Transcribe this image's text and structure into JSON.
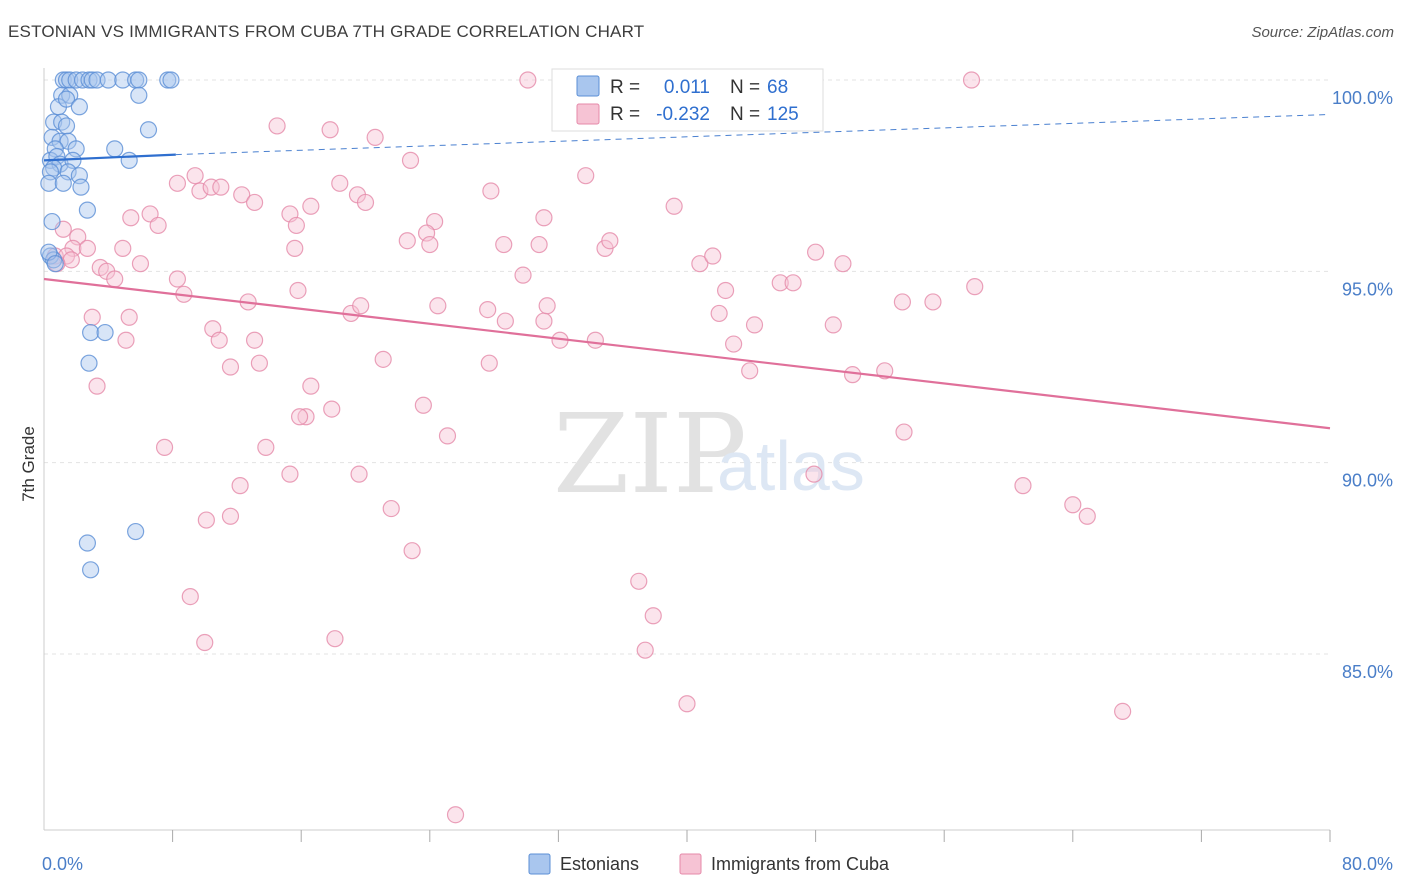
{
  "title": "ESTONIAN VS IMMIGRANTS FROM CUBA 7TH GRADE CORRELATION CHART",
  "source": "Source: ZipAtlas.com",
  "watermark": {
    "zip": "ZIP",
    "atlas": "atlas"
  },
  "chart_data": {
    "type": "scatter",
    "ylabel": "7th Grade",
    "xlim": [
      0,
      80
    ],
    "ylim": [
      80.5,
      100.8
    ],
    "x_tick_labels": [
      {
        "value": 0,
        "label": "0.0%"
      },
      {
        "value": 80,
        "label": "80.0%"
      }
    ],
    "y_tick_labels": [
      {
        "value": 100,
        "label": "100.0%"
      },
      {
        "value": 95,
        "label": "95.0%"
      },
      {
        "value": 90,
        "label": "90.0%"
      },
      {
        "value": 85,
        "label": "85.0%"
      }
    ],
    "x_minor_ticks": [
      8,
      16,
      24,
      32,
      40,
      48,
      56,
      64,
      72,
      80
    ],
    "grid": true,
    "legend": {
      "position": "top-center",
      "rows": [
        {
          "r_label": "R =",
          "r": "0.011",
          "n_label": "N =",
          "n": "68"
        },
        {
          "r_label": "R =",
          "r": "-0.232",
          "n_label": "N =",
          "n": "125"
        }
      ]
    },
    "series": [
      {
        "name": "Estonians",
        "color": "#5b8fd6",
        "fill": "#a9c6ee",
        "trend": {
          "x0": 0,
          "y0": 97.9,
          "x1": 8.2,
          "y1": 98.05,
          "dash_x1": 80,
          "dash_y1": 99.1
        },
        "points": [
          [
            1.2,
            100
          ],
          [
            1.4,
            100
          ],
          [
            1.6,
            100
          ],
          [
            2.0,
            100
          ],
          [
            2.4,
            100
          ],
          [
            2.8,
            100
          ],
          [
            3.0,
            100
          ],
          [
            3.3,
            100
          ],
          [
            4.0,
            100
          ],
          [
            4.9,
            100
          ],
          [
            5.7,
            100
          ],
          [
            5.9,
            100
          ],
          [
            7.7,
            100
          ],
          [
            7.9,
            100
          ],
          [
            1.1,
            99.6
          ],
          [
            1.6,
            99.6
          ],
          [
            5.9,
            99.6
          ],
          [
            0.9,
            99.3
          ],
          [
            1.4,
            99.5
          ],
          [
            2.2,
            99.3
          ],
          [
            0.6,
            98.9
          ],
          [
            1.1,
            98.9
          ],
          [
            1.4,
            98.8
          ],
          [
            6.5,
            98.7
          ],
          [
            0.5,
            98.5
          ],
          [
            1.0,
            98.4
          ],
          [
            1.5,
            98.4
          ],
          [
            0.7,
            98.2
          ],
          [
            2.0,
            98.2
          ],
          [
            4.4,
            98.2
          ],
          [
            0.4,
            97.9
          ],
          [
            0.8,
            98.0
          ],
          [
            1.0,
            97.8
          ],
          [
            0.6,
            97.7
          ],
          [
            1.8,
            97.9
          ],
          [
            5.3,
            97.9
          ],
          [
            0.4,
            97.6
          ],
          [
            1.5,
            97.6
          ],
          [
            2.2,
            97.5
          ],
          [
            0.3,
            97.3
          ],
          [
            1.2,
            97.3
          ],
          [
            2.3,
            97.2
          ],
          [
            2.7,
            96.6
          ],
          [
            0.5,
            96.3
          ],
          [
            0.4,
            95.4
          ],
          [
            0.6,
            95.3
          ],
          [
            0.3,
            95.5
          ],
          [
            0.7,
            95.2
          ],
          [
            2.9,
            93.4
          ],
          [
            3.8,
            93.4
          ],
          [
            2.8,
            92.6
          ],
          [
            5.7,
            88.2
          ],
          [
            2.7,
            87.9
          ],
          [
            2.9,
            87.2
          ]
        ]
      },
      {
        "name": "Immigrants from Cuba",
        "color": "#e589a9",
        "fill": "#f6c3d4",
        "trend": {
          "x0": 0,
          "y0": 94.8,
          "x1": 80,
          "y1": 90.9
        },
        "points": [
          [
            30.1,
            100
          ],
          [
            57.7,
            100
          ],
          [
            14.5,
            98.8
          ],
          [
            17.8,
            98.7
          ],
          [
            20.6,
            98.5
          ],
          [
            22.8,
            97.9
          ],
          [
            33.7,
            97.5
          ],
          [
            8.3,
            97.3
          ],
          [
            9.7,
            97.1
          ],
          [
            9.4,
            97.5
          ],
          [
            10.4,
            97.2
          ],
          [
            11.0,
            97.2
          ],
          [
            12.3,
            97.0
          ],
          [
            13.1,
            96.8
          ],
          [
            16.6,
            96.7
          ],
          [
            18.4,
            97.3
          ],
          [
            19.5,
            97.0
          ],
          [
            20.0,
            96.8
          ],
          [
            27.8,
            97.1
          ],
          [
            39.2,
            96.7
          ],
          [
            6.6,
            96.5
          ],
          [
            5.4,
            96.4
          ],
          [
            7.1,
            96.2
          ],
          [
            15.3,
            96.5
          ],
          [
            15.7,
            96.2
          ],
          [
            24.3,
            96.3
          ],
          [
            31.1,
            96.4
          ],
          [
            1.2,
            96.1
          ],
          [
            2.1,
            95.9
          ],
          [
            1.8,
            95.6
          ],
          [
            2.7,
            95.6
          ],
          [
            4.9,
            95.6
          ],
          [
            0.7,
            95.4
          ],
          [
            1.4,
            95.4
          ],
          [
            1.7,
            95.3
          ],
          [
            6.0,
            95.2
          ],
          [
            15.6,
            95.6
          ],
          [
            22.6,
            95.8
          ],
          [
            23.8,
            96.0
          ],
          [
            24.0,
            95.7
          ],
          [
            28.6,
            95.7
          ],
          [
            30.8,
            95.7
          ],
          [
            34.9,
            95.6
          ],
          [
            35.2,
            95.8
          ],
          [
            40.8,
            95.2
          ],
          [
            41.6,
            95.4
          ],
          [
            48.0,
            95.5
          ],
          [
            49.7,
            95.2
          ],
          [
            29.8,
            94.9
          ],
          [
            3.5,
            95.1
          ],
          [
            3.9,
            95.0
          ],
          [
            4.4,
            94.8
          ],
          [
            8.3,
            94.8
          ],
          [
            0.8,
            95.2
          ],
          [
            3.0,
            93.8
          ],
          [
            5.3,
            93.8
          ],
          [
            5.1,
            93.2
          ],
          [
            8.7,
            94.4
          ],
          [
            12.7,
            94.2
          ],
          [
            15.8,
            94.5
          ],
          [
            19.1,
            93.9
          ],
          [
            19.7,
            94.1
          ],
          [
            24.5,
            94.1
          ],
          [
            27.6,
            94.0
          ],
          [
            28.7,
            93.7
          ],
          [
            31.1,
            93.7
          ],
          [
            31.3,
            94.1
          ],
          [
            32.1,
            93.2
          ],
          [
            34.3,
            93.2
          ],
          [
            42.0,
            93.9
          ],
          [
            42.4,
            94.5
          ],
          [
            44.2,
            93.6
          ],
          [
            45.8,
            94.7
          ],
          [
            46.6,
            94.7
          ],
          [
            49.1,
            93.6
          ],
          [
            53.4,
            94.2
          ],
          [
            55.3,
            94.2
          ],
          [
            57.9,
            94.6
          ],
          [
            10.5,
            93.5
          ],
          [
            10.9,
            93.2
          ],
          [
            13.1,
            93.2
          ],
          [
            11.6,
            92.5
          ],
          [
            13.4,
            92.6
          ],
          [
            21.1,
            92.7
          ],
          [
            27.7,
            92.6
          ],
          [
            42.9,
            93.1
          ],
          [
            43.9,
            92.4
          ],
          [
            50.3,
            92.3
          ],
          [
            52.3,
            92.4
          ],
          [
            3.3,
            92.0
          ],
          [
            16.6,
            92.0
          ],
          [
            16.3,
            91.2
          ],
          [
            15.9,
            91.2
          ],
          [
            17.9,
            91.4
          ],
          [
            23.6,
            91.5
          ],
          [
            25.1,
            90.7
          ],
          [
            53.5,
            90.8
          ],
          [
            7.5,
            90.4
          ],
          [
            13.8,
            90.4
          ],
          [
            15.3,
            89.7
          ],
          [
            19.6,
            89.7
          ],
          [
            47.9,
            89.7
          ],
          [
            12.2,
            89.4
          ],
          [
            60.9,
            89.4
          ],
          [
            10.1,
            88.5
          ],
          [
            11.6,
            88.6
          ],
          [
            21.6,
            88.8
          ],
          [
            64.0,
            88.9
          ],
          [
            64.9,
            88.6
          ],
          [
            22.9,
            87.7
          ],
          [
            37.0,
            86.9
          ],
          [
            9.1,
            86.5
          ],
          [
            37.9,
            86.0
          ],
          [
            10.0,
            85.3
          ],
          [
            18.1,
            85.4
          ],
          [
            37.4,
            85.1
          ],
          [
            40.0,
            83.7
          ],
          [
            67.1,
            83.5
          ],
          [
            25.6,
            80.8
          ]
        ]
      }
    ]
  }
}
